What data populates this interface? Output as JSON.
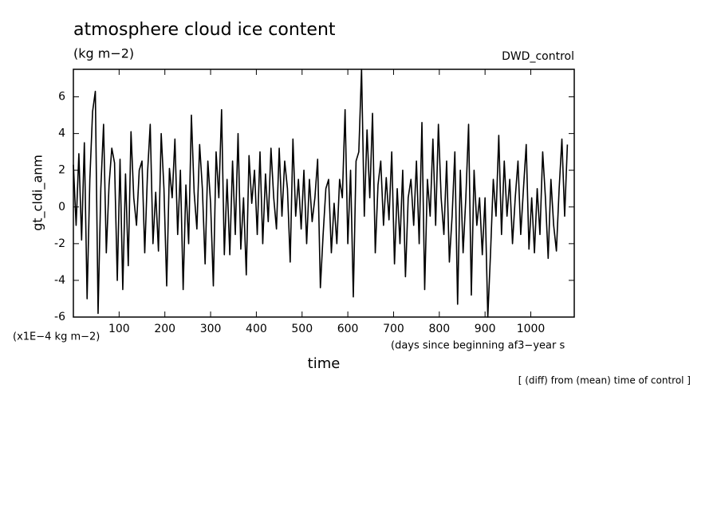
{
  "chart_data": {
    "type": "line",
    "title": "atmosphere cloud ice content",
    "subtitle": "(kg m−2)",
    "experiment": "DWD_control",
    "y_label": "gt_cldi_anm",
    "y_unit": "(x1E−4 kg m−2)",
    "x_label": "time",
    "x_unit": "(days since beginning af3−year s",
    "footer": "[ (diff) from (mean) time of control ]",
    "xlim": [
      0,
      1095
    ],
    "ylim": [
      -6,
      7.5
    ],
    "xticks": [
      100,
      200,
      300,
      400,
      500,
      600,
      700,
      800,
      900,
      1000
    ],
    "yticks": [
      -6,
      -4,
      -2,
      0,
      2,
      4,
      6
    ],
    "x": [
      0,
      6,
      12,
      18,
      24,
      30,
      36,
      42,
      48,
      54,
      60,
      66,
      72,
      78,
      84,
      90,
      96,
      102,
      108,
      114,
      120,
      126,
      132,
      138,
      144,
      150,
      156,
      162,
      168,
      174,
      180,
      186,
      192,
      198,
      204,
      210,
      216,
      222,
      228,
      234,
      240,
      246,
      252,
      258,
      264,
      270,
      276,
      282,
      288,
      294,
      300,
      306,
      312,
      318,
      324,
      330,
      336,
      342,
      348,
      354,
      360,
      366,
      372,
      378,
      384,
      390,
      396,
      402,
      408,
      414,
      420,
      426,
      432,
      438,
      444,
      450,
      456,
      462,
      468,
      474,
      480,
      486,
      492,
      498,
      504,
      510,
      516,
      522,
      528,
      534,
      540,
      546,
      552,
      558,
      564,
      570,
      576,
      582,
      588,
      594,
      600,
      606,
      612,
      618,
      624,
      630,
      636,
      642,
      648,
      654,
      660,
      666,
      672,
      678,
      684,
      690,
      696,
      702,
      708,
      714,
      720,
      726,
      732,
      738,
      744,
      750,
      756,
      762,
      768,
      774,
      780,
      786,
      792,
      798,
      804,
      810,
      816,
      822,
      828,
      834,
      840,
      846,
      852,
      858,
      864,
      870,
      876,
      882,
      888,
      894,
      900,
      906,
      912,
      918,
      924,
      930,
      936,
      942,
      948,
      954,
      960,
      966,
      972,
      978,
      984,
      990,
      996,
      1002,
      1008,
      1014,
      1020,
      1026,
      1032,
      1038,
      1044,
      1050,
      1056,
      1062,
      1068,
      1074,
      1080
    ],
    "series": [
      {
        "name": "gt_cldi_anm",
        "color": "#000000",
        "values": [
          2.3,
          -1.0,
          2.9,
          -1.8,
          3.5,
          -5.0,
          1.5,
          5.2,
          6.3,
          -5.8,
          1.0,
          4.5,
          -2.5,
          1.2,
          3.2,
          2.4,
          -4.0,
          2.6,
          -4.5,
          1.8,
          -3.2,
          4.1,
          0.5,
          -1.0,
          2.0,
          2.5,
          -2.5,
          1.8,
          4.5,
          -2.0,
          0.8,
          -2.4,
          4.0,
          1.0,
          -4.3,
          2.1,
          0.5,
          3.7,
          -1.5,
          2.0,
          -4.5,
          1.2,
          -2.0,
          5.0,
          0.8,
          -1.2,
          3.4,
          1.0,
          -3.1,
          2.5,
          0.2,
          -4.3,
          3.0,
          0.5,
          5.3,
          -2.6,
          1.5,
          -2.6,
          2.5,
          -1.5,
          4.0,
          -2.3,
          0.5,
          -3.7,
          2.8,
          0.2,
          2.0,
          -1.5,
          3.0,
          -2.0,
          1.8,
          -0.8,
          3.2,
          0.5,
          -1.2,
          3.2,
          -0.5,
          2.5,
          1.0,
          -3.0,
          3.7,
          -0.5,
          1.5,
          -1.2,
          2.0,
          -2.0,
          1.5,
          -0.8,
          0.5,
          2.6,
          -4.4,
          -1.5,
          1.0,
          1.5,
          -2.5,
          0.2,
          -2.0,
          1.5,
          0.5,
          5.3,
          -2.0,
          2.0,
          -4.9,
          2.5,
          3.0,
          7.5,
          -0.5,
          4.2,
          0.5,
          5.1,
          -2.5,
          1.2,
          2.5,
          -1.0,
          1.6,
          -0.7,
          3.0,
          -3.1,
          1.0,
          -2.0,
          2.0,
          -3.8,
          0.5,
          1.5,
          -1.0,
          2.5,
          -2.0,
          4.6,
          -4.5,
          1.5,
          -0.5,
          3.7,
          -1.0,
          4.5,
          0.5,
          -1.5,
          2.5,
          -3.0,
          -0.5,
          3.0,
          -5.3,
          2.0,
          -2.5,
          0.5,
          4.5,
          -4.8,
          2.0,
          -1.0,
          0.5,
          -2.6,
          0.5,
          -6.0,
          -2.5,
          1.5,
          -0.5,
          3.9,
          -1.5,
          2.5,
          -0.5,
          1.5,
          -2.0,
          0.5,
          2.5,
          -1.5,
          1.0,
          3.4,
          -2.3,
          0.5,
          -2.5,
          1.0,
          -1.5,
          3.0,
          0.5,
          -2.8,
          1.5,
          -1.0,
          -2.4,
          1.0,
          3.7,
          -0.5,
          3.4
        ]
      }
    ]
  }
}
